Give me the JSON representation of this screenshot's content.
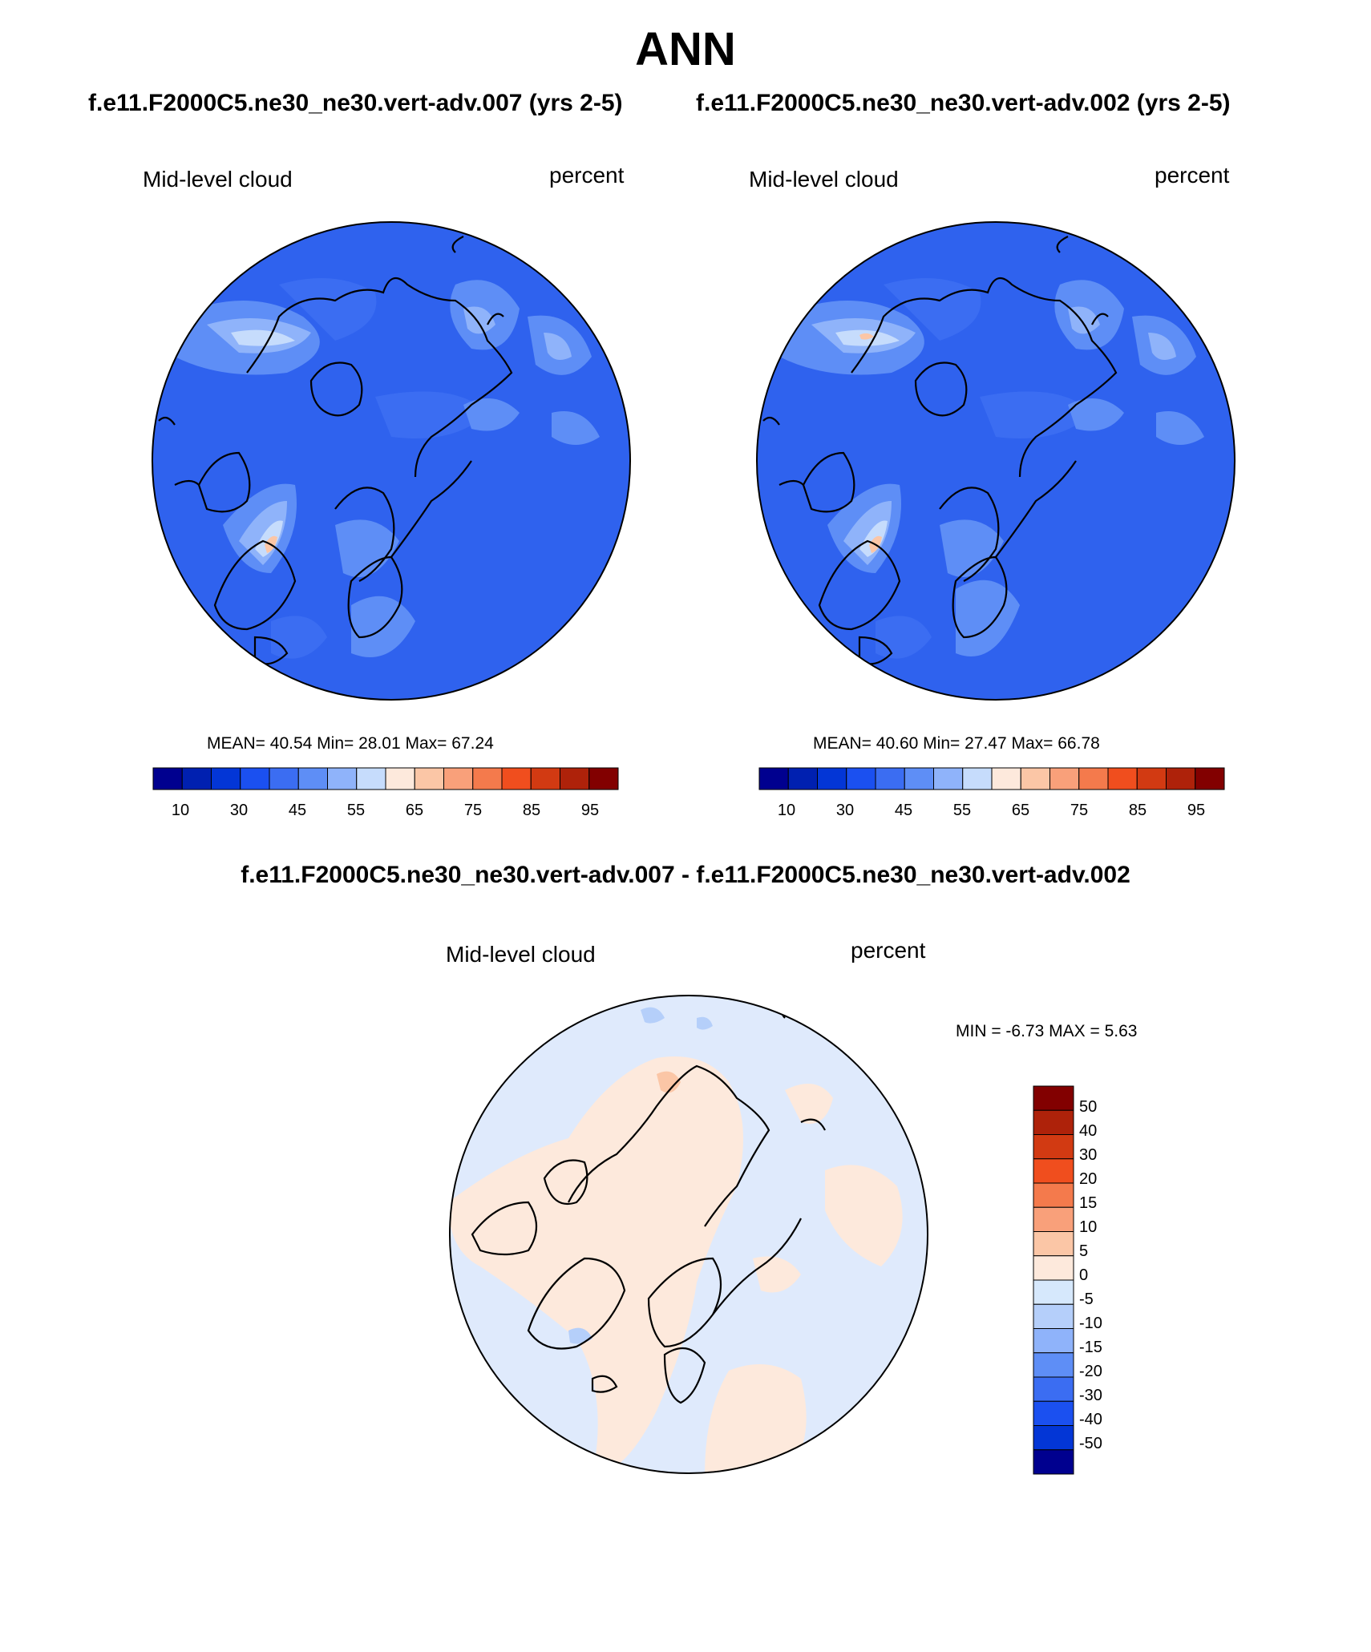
{
  "title": "ANN",
  "panels": [
    {
      "case_title": "f.e11.F2000C5.ne30_ne30.vert-adv.007 (yrs 2-5)",
      "left_label": "Mid-level cloud",
      "right_label": "percent",
      "stats": "MEAN=  40.54  Min=  28.01  Max=  67.24"
    },
    {
      "case_title": "f.e11.F2000C5.ne30_ne30.vert-adv.002 (yrs 2-5)",
      "left_label": "Mid-level cloud",
      "right_label": "percent",
      "stats": "MEAN=  40.60  Min=  27.47  Max=  66.78"
    }
  ],
  "diff": {
    "title": "f.e11.F2000C5.ne30_ne30.vert-adv.007 - f.e11.F2000C5.ne30_ne30.vert-adv.002",
    "left_label": "Mid-level cloud",
    "right_label": "percent",
    "stats": "MIN =  -6.73 MAX =   5.63"
  },
  "colorbar_top": {
    "colors": [
      "#00008f",
      "#0020b0",
      "#0336d6",
      "#1b50f0",
      "#3b6df2",
      "#5e8ef6",
      "#8fb3fa",
      "#c6dcfc",
      "#fde9dc",
      "#fbc6a6",
      "#f9a07a",
      "#f47a4c",
      "#f04e1e",
      "#d23a12",
      "#ae220a",
      "#820000"
    ],
    "tick_labels": [
      "10",
      "30",
      "45",
      "55",
      "65",
      "75",
      "85",
      "95"
    ]
  },
  "colorbar_diff": {
    "colors": [
      "#820000",
      "#ae220a",
      "#d23a12",
      "#f04e1e",
      "#f47a4c",
      "#f9a07a",
      "#fbc6a6",
      "#fde9dc",
      "#d6e8fc",
      "#b5cffa",
      "#8fb3fa",
      "#5e8ef6",
      "#3b6df2",
      "#1b50f0",
      "#0336d6",
      "#00008f"
    ],
    "tick_labels": [
      "50",
      "40",
      "30",
      "20",
      "15",
      "10",
      "5",
      "0",
      "-5",
      "-10",
      "-15",
      "-20",
      "-30",
      "-40",
      "-50"
    ]
  },
  "map_colors": {
    "background_top": "#2f62ee",
    "background_diff": "#dfeafc",
    "land_outline": "#000000"
  }
}
